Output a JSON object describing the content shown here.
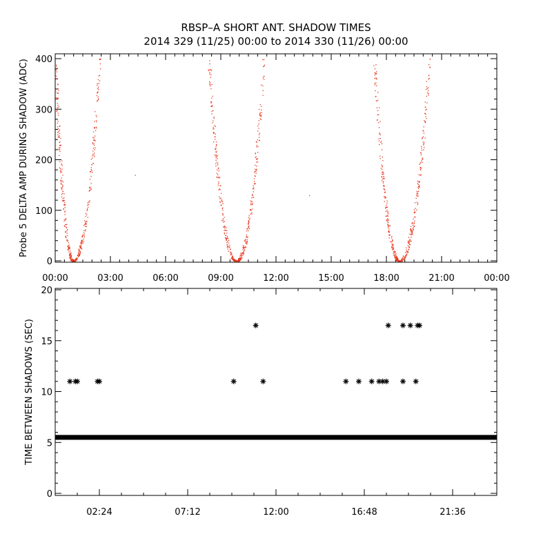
{
  "title": "RBSP–A SHORT ANT. SHADOW TIMES",
  "subtitle": "2014 329 (11/25) 00:00 to 2014 330 (11/26) 00:00",
  "colors": {
    "top_points": "#e8341c",
    "bottom_points": "#000000",
    "axes": "#000000"
  },
  "chart_data": [
    {
      "type": "scatter",
      "ylabel": "Probe 5 DELTA AMP DURING SHADOW (ADC)",
      "xlim": [
        "00:00",
        "24:00"
      ],
      "ylim": [
        0,
        400
      ],
      "xticks": [
        "00:00",
        "03:00",
        "06:00",
        "09:00",
        "12:00",
        "15:00",
        "18:00",
        "21:00",
        "00:00"
      ],
      "yticks": [
        "0",
        "100",
        "200",
        "300",
        "400"
      ],
      "point_style": "small red dots",
      "shadow_passes": [
        {
          "start": "00:00",
          "min_time": "00:58",
          "end": "02:25",
          "min_value": 0,
          "max_value": 400
        },
        {
          "start": "08:20",
          "min_time": "09:50",
          "end": "11:20",
          "min_value": 0,
          "max_value": 400
        },
        {
          "start": "17:20",
          "min_time": "18:42",
          "end": "20:20",
          "min_value": 0,
          "max_value": 400
        }
      ],
      "isolated_points": [
        {
          "x": "04:20",
          "y": 170
        },
        {
          "x": "13:48",
          "y": 130
        }
      ]
    },
    {
      "type": "scatter",
      "ylabel": "TIME BETWEEN SHADOWS (SEC)",
      "xlim": [
        "00:00",
        "24:00"
      ],
      "ylim": [
        0,
        20
      ],
      "xticks": [
        "02:24",
        "07:12",
        "12:00",
        "16:48",
        "21:36"
      ],
      "yticks": [
        "0",
        "5",
        "10",
        "15",
        "20"
      ],
      "marker": "asterisk",
      "baseline": {
        "value": 5.5,
        "from": "00:00",
        "to": "24:00"
      },
      "points": [
        {
          "x": "00:48",
          "y": 11
        },
        {
          "x": "01:06",
          "y": 11
        },
        {
          "x": "01:12",
          "y": 11
        },
        {
          "x": "02:18",
          "y": 11
        },
        {
          "x": "02:24",
          "y": 11
        },
        {
          "x": "09:42",
          "y": 11
        },
        {
          "x": "10:54",
          "y": 16.5
        },
        {
          "x": "11:18",
          "y": 11
        },
        {
          "x": "15:48",
          "y": 11
        },
        {
          "x": "16:30",
          "y": 11
        },
        {
          "x": "17:12",
          "y": 11
        },
        {
          "x": "17:36",
          "y": 11
        },
        {
          "x": "17:48",
          "y": 11
        },
        {
          "x": "18:00",
          "y": 11
        },
        {
          "x": "18:06",
          "y": 16.5
        },
        {
          "x": "18:54",
          "y": 11
        },
        {
          "x": "18:54",
          "y": 16.5
        },
        {
          "x": "19:18",
          "y": 16.5
        },
        {
          "x": "19:36",
          "y": 11
        },
        {
          "x": "19:42",
          "y": 16.5
        },
        {
          "x": "19:48",
          "y": 16.5
        }
      ]
    }
  ]
}
